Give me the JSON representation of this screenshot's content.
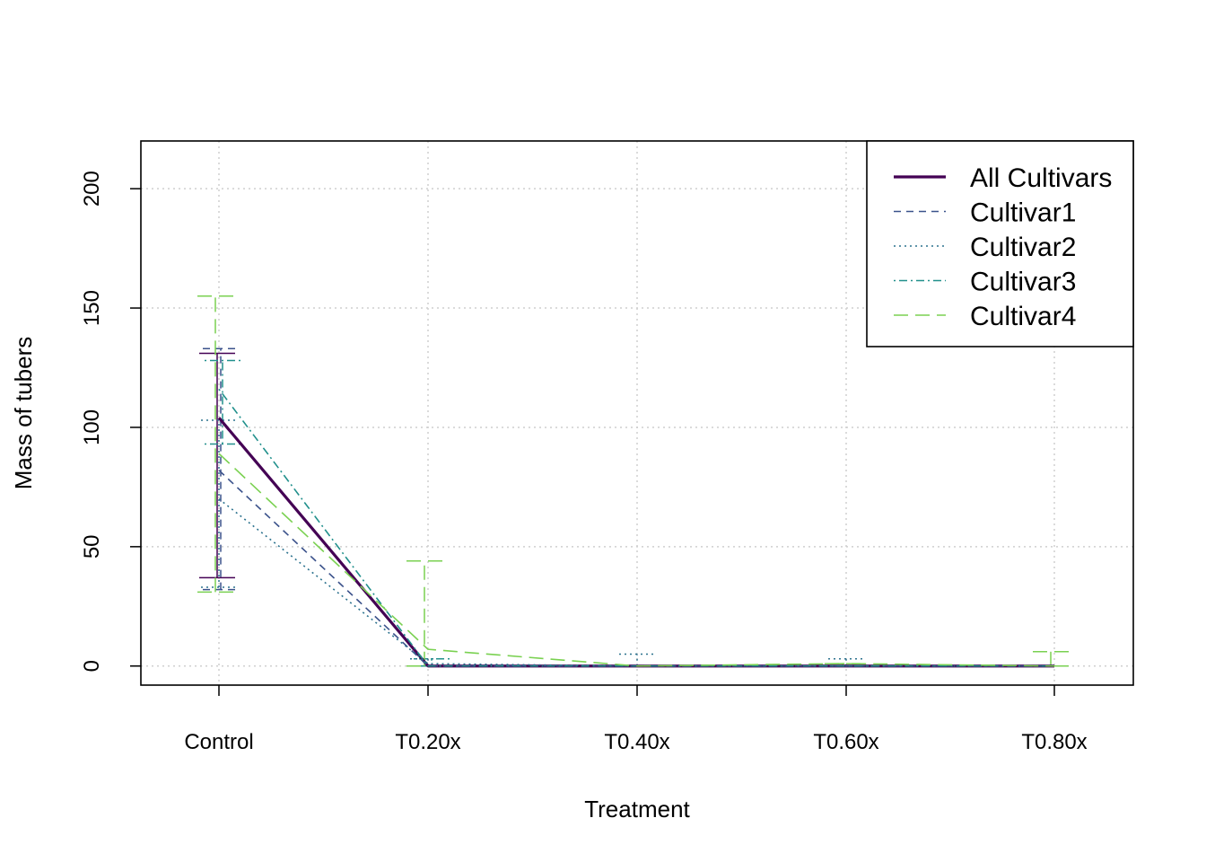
{
  "chart_data": {
    "type": "line",
    "xlabel": "Treatment",
    "ylabel": "Mass of tubers",
    "categories": [
      "Control",
      "T0.20x",
      "T0.40x",
      "T0.60x",
      "T0.80x"
    ],
    "ylim": [
      -8,
      220
    ],
    "yticks": [
      0,
      50,
      100,
      150,
      200
    ],
    "grid": true,
    "legend_position": "top-right",
    "error_bars": true,
    "series": [
      {
        "name": "All Cultivars",
        "color": "#440154",
        "dash": "solid",
        "width": 3.2,
        "values": [
          104,
          0,
          0,
          0,
          0
        ],
        "errors": [
          [
            37,
            131
          ],
          [
            0,
            0
          ],
          [
            0,
            0
          ],
          [
            0,
            0
          ],
          [
            0,
            0
          ]
        ]
      },
      {
        "name": "Cultivar1",
        "color": "#3B528B",
        "dash": "dashed",
        "width": 1.6,
        "values": [
          82,
          0,
          0,
          0,
          0
        ],
        "errors": [
          [
            32,
            133
          ],
          [
            0,
            0
          ],
          [
            0,
            0
          ],
          [
            0,
            0
          ],
          [
            0,
            0
          ]
        ]
      },
      {
        "name": "Cultivar2",
        "color": "#2C728E",
        "dash": "dotted",
        "width": 1.6,
        "values": [
          70,
          1,
          0,
          0,
          0
        ],
        "errors": [
          [
            33,
            103
          ],
          [
            0,
            3
          ],
          [
            0,
            5
          ],
          [
            0,
            3
          ],
          [
            0,
            0
          ]
        ]
      },
      {
        "name": "Cultivar3",
        "color": "#21908C",
        "dash": "dotdash",
        "width": 1.6,
        "values": [
          116,
          0,
          0,
          0,
          0
        ],
        "errors": [
          [
            93,
            128
          ],
          [
            0,
            3
          ],
          [
            0,
            0
          ],
          [
            0,
            0
          ],
          [
            0,
            0
          ]
        ]
      },
      {
        "name": "Cultivar4",
        "color": "#7AD151",
        "dash": "longdash",
        "width": 1.6,
        "values": [
          89,
          7,
          0,
          1,
          0
        ],
        "errors": [
          [
            31,
            155
          ],
          [
            0,
            44
          ],
          [
            0,
            0
          ],
          [
            0,
            1
          ],
          [
            0,
            6
          ]
        ]
      }
    ]
  }
}
